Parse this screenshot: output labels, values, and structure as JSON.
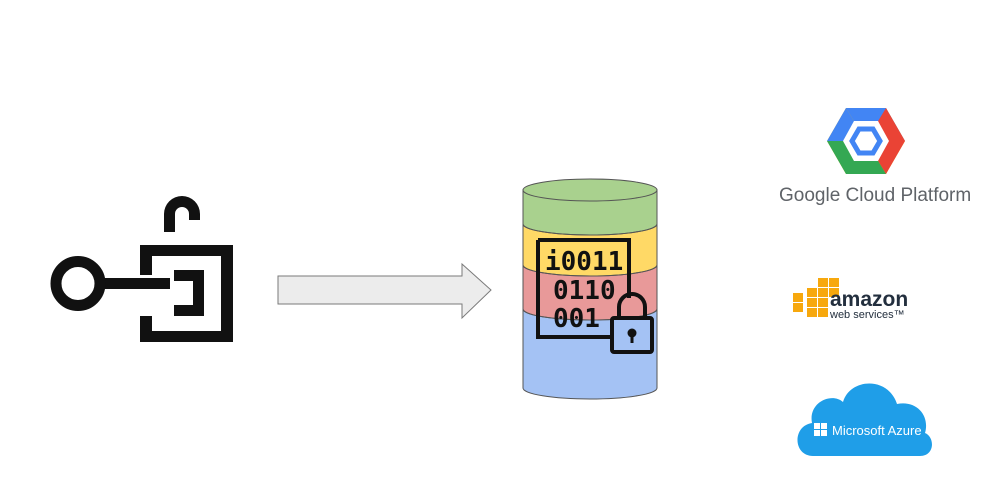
{
  "diagram": {
    "binary_lines": [
      "i0011",
      "0110",
      "001"
    ],
    "colors": {
      "key_icon": "#111111",
      "arrow_fill": "#ececec",
      "arrow_stroke": "#7a7a7a",
      "db_band_green": "#a9d18e",
      "db_band_yellow": "#ffd966",
      "db_band_red": "#e89999",
      "db_band_blue": "#a4c2f4"
    }
  },
  "providers": {
    "gcp": {
      "label": "Google Cloud Platform",
      "icon": "gcp-hexagon-logo",
      "colors": [
        "#4285f4",
        "#ea4335",
        "#fbbc04",
        "#34a853"
      ]
    },
    "aws": {
      "label": "amazon",
      "sublabel": "web services™",
      "icon": "aws-cubes-logo",
      "colors": [
        "#f7a80d",
        "#232f3e"
      ]
    },
    "azure": {
      "label": "Microsoft Azure",
      "icon": "azure-cloud-logo",
      "colors": [
        "#1f9ee8",
        "#ffffff"
      ]
    }
  }
}
